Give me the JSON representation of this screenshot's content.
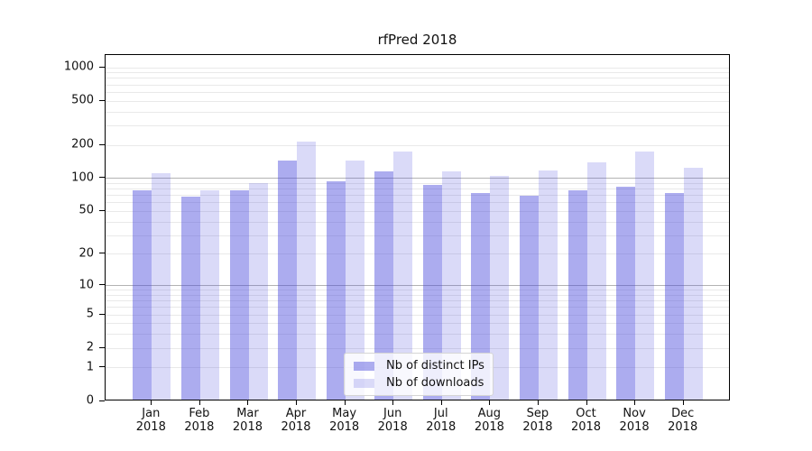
{
  "title": "rfPred 2018",
  "chart_data": {
    "type": "bar",
    "title": "rfPred 2018",
    "categories": [
      "Jan\n2018",
      "Feb\n2018",
      "Mar\n2018",
      "Apr\n2018",
      "May\n2018",
      "Jun\n2018",
      "Jul\n2018",
      "Aug\n2018",
      "Sep\n2018",
      "Oct\n2018",
      "Nov\n2018",
      "Dec\n2018"
    ],
    "series": [
      {
        "name": "Nb of distinct IPs",
        "color": "rgba(70,70,220,0.45)",
        "values": [
          75,
          65,
          75,
          140,
          90,
          110,
          83,
          70,
          67,
          75,
          80,
          70
        ]
      },
      {
        "name": "Nb of downloads",
        "color": "rgba(70,70,220,0.2)",
        "values": [
          107,
          75,
          87,
          205,
          138,
          169,
          110,
          100,
          113,
          134,
          166,
          120
        ]
      }
    ],
    "xlabel": "",
    "ylabel": "",
    "yscale": "log1p",
    "ylim": [
      0,
      1300
    ],
    "yticks": [
      0,
      1,
      2,
      5,
      10,
      20,
      50,
      100,
      200,
      500,
      1000
    ],
    "grid_values_light": [
      1,
      2,
      3,
      4,
      5,
      6,
      7,
      8,
      9,
      20,
      30,
      40,
      50,
      60,
      70,
      80,
      90,
      200,
      300,
      400,
      500,
      600,
      700,
      800,
      900,
      1000
    ],
    "grid_values_dark": [
      10,
      100
    ],
    "legend_position": "bottom-center",
    "colors": {
      "bar_dark": "rgba(70,70,220,0.45)",
      "bar_light": "rgba(70,70,220,0.2)",
      "grid_light": "#e9e9e9",
      "grid_dark": "#b3b3b3",
      "axis": "#000000",
      "text": "#111111"
    }
  }
}
